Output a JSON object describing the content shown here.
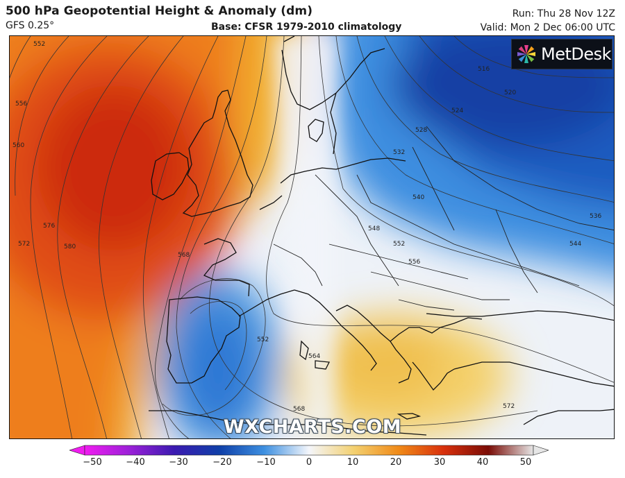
{
  "header": {
    "title": "500 hPa Geopotential Height & Anomaly (dm)",
    "model": "GFS 0.25°",
    "base": "Base: CFSR 1979-2010 climatology",
    "run": "Run: Thu 28 Nov 12Z",
    "valid": "Valid: Mon 2 Dec 06:00 UTC"
  },
  "brand": {
    "name": "MetDesk",
    "icon": "metdesk-pinwheel-icon"
  },
  "watermark": "WXCHARTS.COM",
  "map": {
    "region": "Europe and North Atlantic",
    "contour_labels": [
      "552",
      "556",
      "560",
      "572",
      "576",
      "580",
      "568",
      "516",
      "520",
      "524",
      "528",
      "532",
      "536",
      "540",
      "544",
      "548",
      "552",
      "556",
      "552",
      "564",
      "568",
      "572"
    ]
  },
  "colorbar": {
    "ticks": [
      "−50",
      "−40",
      "−30",
      "−20",
      "−10",
      "0",
      "10",
      "20",
      "30",
      "40",
      "50"
    ],
    "colors": {
      "-50": "#f01cf0",
      "-40": "#9b20d8",
      "-30": "#3a1ab0",
      "-20": "#0f3fa8",
      "-10": "#3d8fe0",
      "0": "#f4f6fb",
      "10": "#f3d070",
      "20": "#f08a18",
      "30": "#d8300c",
      "40": "#7a0c06",
      "50": "#e6e6e6"
    }
  }
}
